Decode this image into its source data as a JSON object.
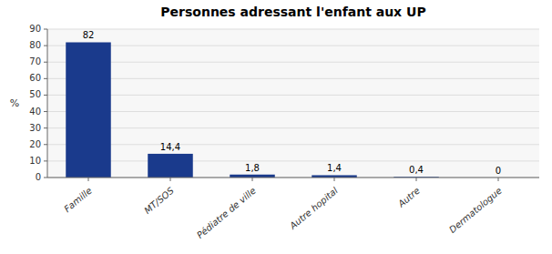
{
  "chart_data": {
    "type": "bar",
    "title": "Personnes adressant l'enfant aux UP",
    "categories": [
      "Famille",
      "MT/SOS",
      "Pédiatre de ville",
      "Autre hopital",
      "Autre",
      "Dermatologue"
    ],
    "values": [
      82,
      14.4,
      1.8,
      1.4,
      0.4,
      0
    ],
    "value_labels": [
      "82",
      "14,4",
      "1,8",
      "1,4",
      "0,4",
      "0"
    ],
    "data_labels": true,
    "color": "#1A3A8C",
    "ylabel": "%",
    "ylim": [
      0,
      90
    ],
    "yticks": [
      0,
      10,
      20,
      30,
      40,
      50,
      60,
      70,
      80,
      90
    ],
    "grid": true
  }
}
